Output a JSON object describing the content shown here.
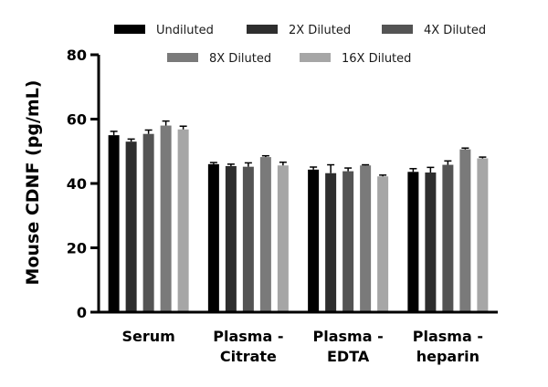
{
  "chart_data": {
    "type": "bar",
    "title": "",
    "xlabel": "",
    "ylabel": "Mouse CDNF (pg/mL)",
    "ylim": [
      0,
      80
    ],
    "yticks": [
      0,
      20,
      40,
      60,
      80
    ],
    "grid": false,
    "legend_position": "top",
    "categories": [
      [
        "Serum"
      ],
      [
        "Plasma -",
        "Citrate"
      ],
      [
        "Plasma -",
        "EDTA"
      ],
      [
        "Plasma -",
        "heparin"
      ]
    ],
    "series": [
      {
        "name": "Undiluted",
        "color": "#000000",
        "values": [
          55.0,
          46.0,
          44.3,
          43.6
        ],
        "errors": [
          1.2,
          0.5,
          0.8,
          1.0
        ]
      },
      {
        "name": "2X Diluted",
        "color": "#2e2e2e",
        "values": [
          53.0,
          45.4,
          43.2,
          43.4
        ],
        "errors": [
          0.8,
          0.6,
          2.6,
          1.6
        ]
      },
      {
        "name": "4X Diluted",
        "color": "#545454",
        "values": [
          55.4,
          45.2,
          43.8,
          45.8
        ],
        "errors": [
          1.2,
          1.2,
          1.0,
          1.2
        ]
      },
      {
        "name": "8X Diluted",
        "color": "#7a7a7a",
        "values": [
          58.0,
          48.2,
          45.6,
          50.6
        ],
        "errors": [
          1.4,
          0.4,
          0.2,
          0.4
        ]
      },
      {
        "name": "16X Diluted",
        "color": "#a6a6a6",
        "values": [
          56.8,
          45.6,
          42.2,
          47.8
        ],
        "errors": [
          1.0,
          1.0,
          0.4,
          0.4
        ]
      }
    ]
  }
}
